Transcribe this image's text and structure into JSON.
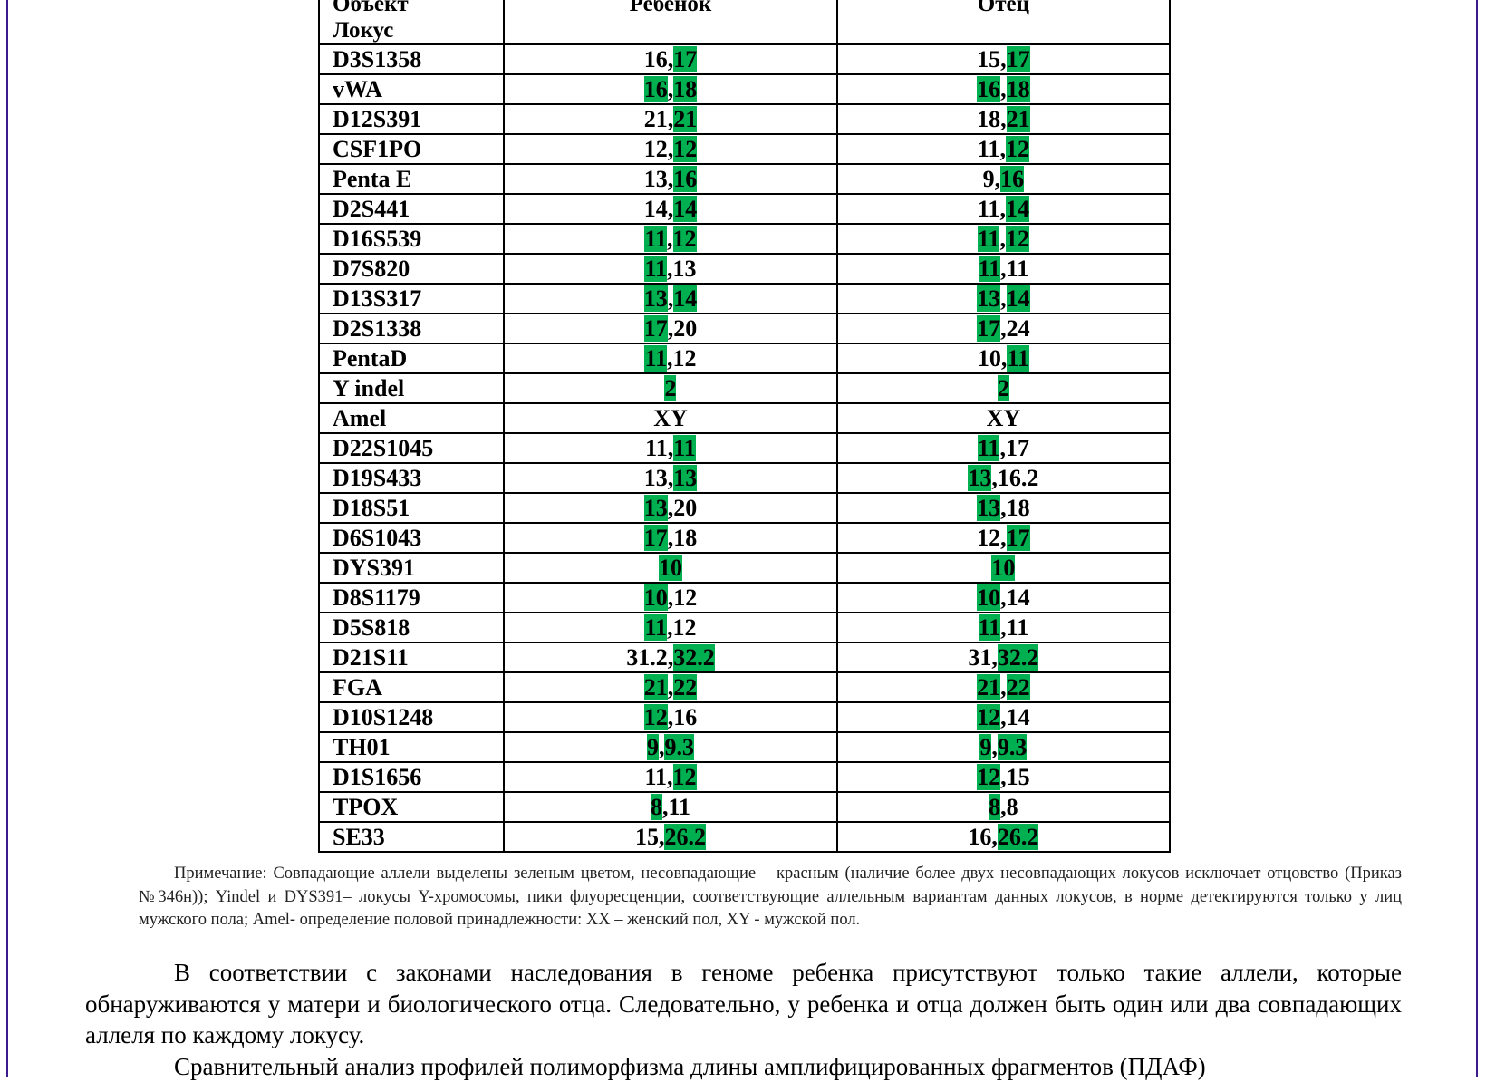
{
  "colors": {
    "match": "#00b050",
    "frame": "#3a1a8c"
  },
  "table": {
    "headers": {
      "locus_line1": "Объект",
      "locus_line2": "Локус",
      "child": "Ребенок",
      "father": "Отец"
    },
    "rows": [
      {
        "locus": "D3S1358",
        "child": [
          [
            "16",
            false
          ],
          [
            "17",
            true
          ]
        ],
        "father": [
          [
            "15",
            false
          ],
          [
            "17",
            true
          ]
        ]
      },
      {
        "locus": "vWA",
        "child": [
          [
            "16",
            true
          ],
          [
            "18",
            true
          ]
        ],
        "father": [
          [
            "16",
            true
          ],
          [
            "18",
            true
          ]
        ]
      },
      {
        "locus": "D12S391",
        "child": [
          [
            "21",
            false
          ],
          [
            "21",
            true
          ]
        ],
        "father": [
          [
            "18",
            false
          ],
          [
            "21",
            true
          ]
        ]
      },
      {
        "locus": "CSF1PO",
        "child": [
          [
            "12",
            false
          ],
          [
            "12",
            true
          ]
        ],
        "father": [
          [
            "11",
            false
          ],
          [
            "12",
            true
          ]
        ]
      },
      {
        "locus": "Penta E",
        "child": [
          [
            "13",
            false
          ],
          [
            "16",
            true
          ]
        ],
        "father": [
          [
            "9",
            false
          ],
          [
            "16",
            true
          ]
        ]
      },
      {
        "locus": "D2S441",
        "child": [
          [
            "14",
            false
          ],
          [
            "14",
            true
          ]
        ],
        "father": [
          [
            "11",
            false
          ],
          [
            "14",
            true
          ]
        ]
      },
      {
        "locus": "D16S539",
        "child": [
          [
            "11",
            true
          ],
          [
            "12",
            true
          ]
        ],
        "father": [
          [
            "11",
            true
          ],
          [
            "12",
            true
          ]
        ]
      },
      {
        "locus": "D7S820",
        "child": [
          [
            "11",
            true
          ],
          [
            "13",
            false
          ]
        ],
        "father": [
          [
            "11",
            true
          ],
          [
            "11",
            false
          ]
        ]
      },
      {
        "locus": "D13S317",
        "child": [
          [
            "13",
            true
          ],
          [
            "14",
            true
          ]
        ],
        "father": [
          [
            "13",
            true
          ],
          [
            "14",
            true
          ]
        ]
      },
      {
        "locus": "D2S1338",
        "child": [
          [
            "17",
            true
          ],
          [
            "20",
            false
          ]
        ],
        "father": [
          [
            "17",
            true
          ],
          [
            "24",
            false
          ]
        ]
      },
      {
        "locus": "PentaD",
        "child": [
          [
            "11",
            true
          ],
          [
            "12",
            false
          ]
        ],
        "father": [
          [
            "10",
            false
          ],
          [
            "11",
            true
          ]
        ]
      },
      {
        "locus": "Y indel",
        "child": [
          [
            "2",
            true
          ]
        ],
        "father": [
          [
            "2",
            true
          ]
        ]
      },
      {
        "locus": "Amel",
        "child": [
          [
            "XY",
            false
          ]
        ],
        "father": [
          [
            "XY",
            false
          ]
        ]
      },
      {
        "locus": "D22S1045",
        "child": [
          [
            "11",
            false
          ],
          [
            "11",
            true
          ]
        ],
        "father": [
          [
            "11",
            true
          ],
          [
            "17",
            false
          ]
        ]
      },
      {
        "locus": "D19S433",
        "child": [
          [
            "13",
            false
          ],
          [
            "13",
            true
          ]
        ],
        "father": [
          [
            "13",
            true
          ],
          [
            "16.2",
            false
          ]
        ]
      },
      {
        "locus": "D18S51",
        "child": [
          [
            "13",
            true
          ],
          [
            "20",
            false
          ]
        ],
        "father": [
          [
            "13",
            true
          ],
          [
            "18",
            false
          ]
        ]
      },
      {
        "locus": "D6S1043",
        "child": [
          [
            "17",
            true
          ],
          [
            "18",
            false
          ]
        ],
        "father": [
          [
            "12",
            false
          ],
          [
            "17",
            true
          ]
        ]
      },
      {
        "locus": "DYS391",
        "child": [
          [
            "10",
            true
          ]
        ],
        "father": [
          [
            "10",
            true
          ]
        ]
      },
      {
        "locus": "D8S1179",
        "child": [
          [
            "10",
            true
          ],
          [
            "12",
            false
          ]
        ],
        "father": [
          [
            "10",
            true
          ],
          [
            "14",
            false
          ]
        ]
      },
      {
        "locus": "D5S818",
        "child": [
          [
            "11",
            true
          ],
          [
            "12",
            false
          ]
        ],
        "father": [
          [
            "11",
            true
          ],
          [
            "11",
            false
          ]
        ]
      },
      {
        "locus": "D21S11",
        "child": [
          [
            "31.2",
            false
          ],
          [
            "32.2",
            true
          ]
        ],
        "father": [
          [
            "31",
            false
          ],
          [
            "32.2",
            true
          ]
        ]
      },
      {
        "locus": "FGA",
        "child": [
          [
            "21",
            true
          ],
          [
            "22",
            true
          ]
        ],
        "father": [
          [
            "21",
            true
          ],
          [
            "22",
            true
          ]
        ]
      },
      {
        "locus": "D10S1248",
        "child": [
          [
            "12",
            true
          ],
          [
            "16",
            false
          ]
        ],
        "father": [
          [
            "12",
            true
          ],
          [
            "14",
            false
          ]
        ]
      },
      {
        "locus": "TH01",
        "child": [
          [
            "9",
            true
          ],
          [
            "9.3",
            true
          ]
        ],
        "father": [
          [
            "9",
            true
          ],
          [
            "9.3",
            true
          ]
        ]
      },
      {
        "locus": "D1S1656",
        "child": [
          [
            "11",
            false
          ],
          [
            "12",
            true
          ]
        ],
        "father": [
          [
            "12",
            true
          ],
          [
            "15",
            false
          ]
        ]
      },
      {
        "locus": "TPOX",
        "child": [
          [
            "8",
            true
          ],
          [
            "11",
            false
          ]
        ],
        "father": [
          [
            "8",
            true
          ],
          [
            "8",
            false
          ]
        ]
      },
      {
        "locus": "SE33",
        "child": [
          [
            "15",
            false
          ],
          [
            "26.2",
            true
          ]
        ],
        "father": [
          [
            "16",
            false
          ],
          [
            "26.2",
            true
          ]
        ]
      }
    ]
  },
  "note": "Примечание:  Совпадающие аллели выделены зеленым цветом, несовпадающие – красным (наличие более двух несовпадающих локусов исключает отцовство (Приказ №346н));  Yindel  и DYS391– локусы Y-хромосомы, пики флуоресценции, соответствующие аллельным вариантам данных локусов, в норме детектируются только у лиц мужского пола;  Amel- определение половой принадлежности: XX – женский пол, XY - мужской пол.",
  "body": [
    "В соответствии с законами наследования в геноме ребенка присутствуют только такие аллели, которые обнаруживаются у матери и биологического отца. Следовательно, у ребенка и отца  должен быть один или два совпадающих аллеля по каждому локусу.",
    "Сравнительный анализ профилей полиморфизма длины амплифицированных фрагментов (ПДАФ)"
  ]
}
